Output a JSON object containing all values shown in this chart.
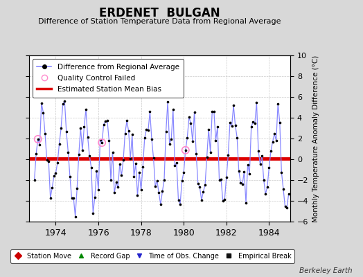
{
  "title": "ERDENET  BULGAN",
  "subtitle": "Difference of Station Temperature Data from Regional Average",
  "ylabel": "Monthly Temperature Anomaly Difference (°C)",
  "xlim": [
    1972.75,
    1985.0
  ],
  "ylim": [
    -6,
    10
  ],
  "yticks": [
    -6,
    -4,
    -2,
    0,
    2,
    4,
    6,
    8,
    10
  ],
  "xticks": [
    1974,
    1976,
    1978,
    1980,
    1982,
    1984
  ],
  "bias_value": 0.1,
  "background_color": "#d8d8d8",
  "plot_bg_color": "#ffffff",
  "line_color": "#8888ff",
  "dot_color": "#000000",
  "bias_color": "#dd0000",
  "qc_color": "#ff88cc",
  "footer": "Berkeley Earth",
  "seed": 37,
  "n_points": 144,
  "start_year": 1973.0,
  "amplitude": 3.5
}
